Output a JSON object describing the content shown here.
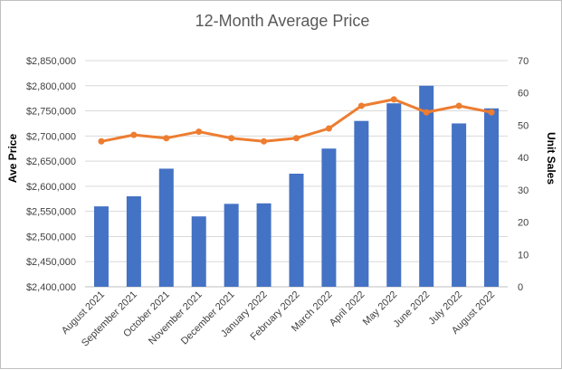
{
  "chart_data": {
    "type": "bar",
    "title": "12-Month Average Price",
    "categories": [
      "August 2021",
      "September 2021",
      "October 2021",
      "November 2021",
      "December 2021",
      "January 2022",
      "February 2022",
      "March 2022",
      "April 2022",
      "May 2022",
      "June 2022",
      "July 2022",
      "August 2022"
    ],
    "series": [
      {
        "type": "bar",
        "axis": "left",
        "color": "#4472c4",
        "values": [
          2560000,
          2580000,
          2635000,
          2540000,
          2565000,
          2566000,
          2625000,
          2675000,
          2730000,
          2765000,
          2800000,
          2725000,
          2755000
        ]
      },
      {
        "type": "line",
        "axis": "right",
        "color": "#ed7d31",
        "values": [
          45,
          47,
          46,
          48,
          46,
          45,
          46,
          49,
          56,
          58,
          54,
          56,
          54
        ]
      }
    ],
    "ylabel": "Ave Price",
    "ylim": [
      2400000,
      2850000
    ],
    "yticks": [
      "$2,400,000",
      "$2,450,000",
      "$2,500,000",
      "$2,550,000",
      "$2,600,000",
      "$2,650,000",
      "$2,700,000",
      "$2,750,000",
      "$2,800,000",
      "$2,850,000"
    ],
    "y2label": "Unit Sales",
    "y2lim": [
      0,
      70
    ],
    "y2ticks": [
      "0",
      "10",
      "20",
      "30",
      "40",
      "50",
      "60",
      "70"
    ],
    "grid": true,
    "legend": "none"
  }
}
